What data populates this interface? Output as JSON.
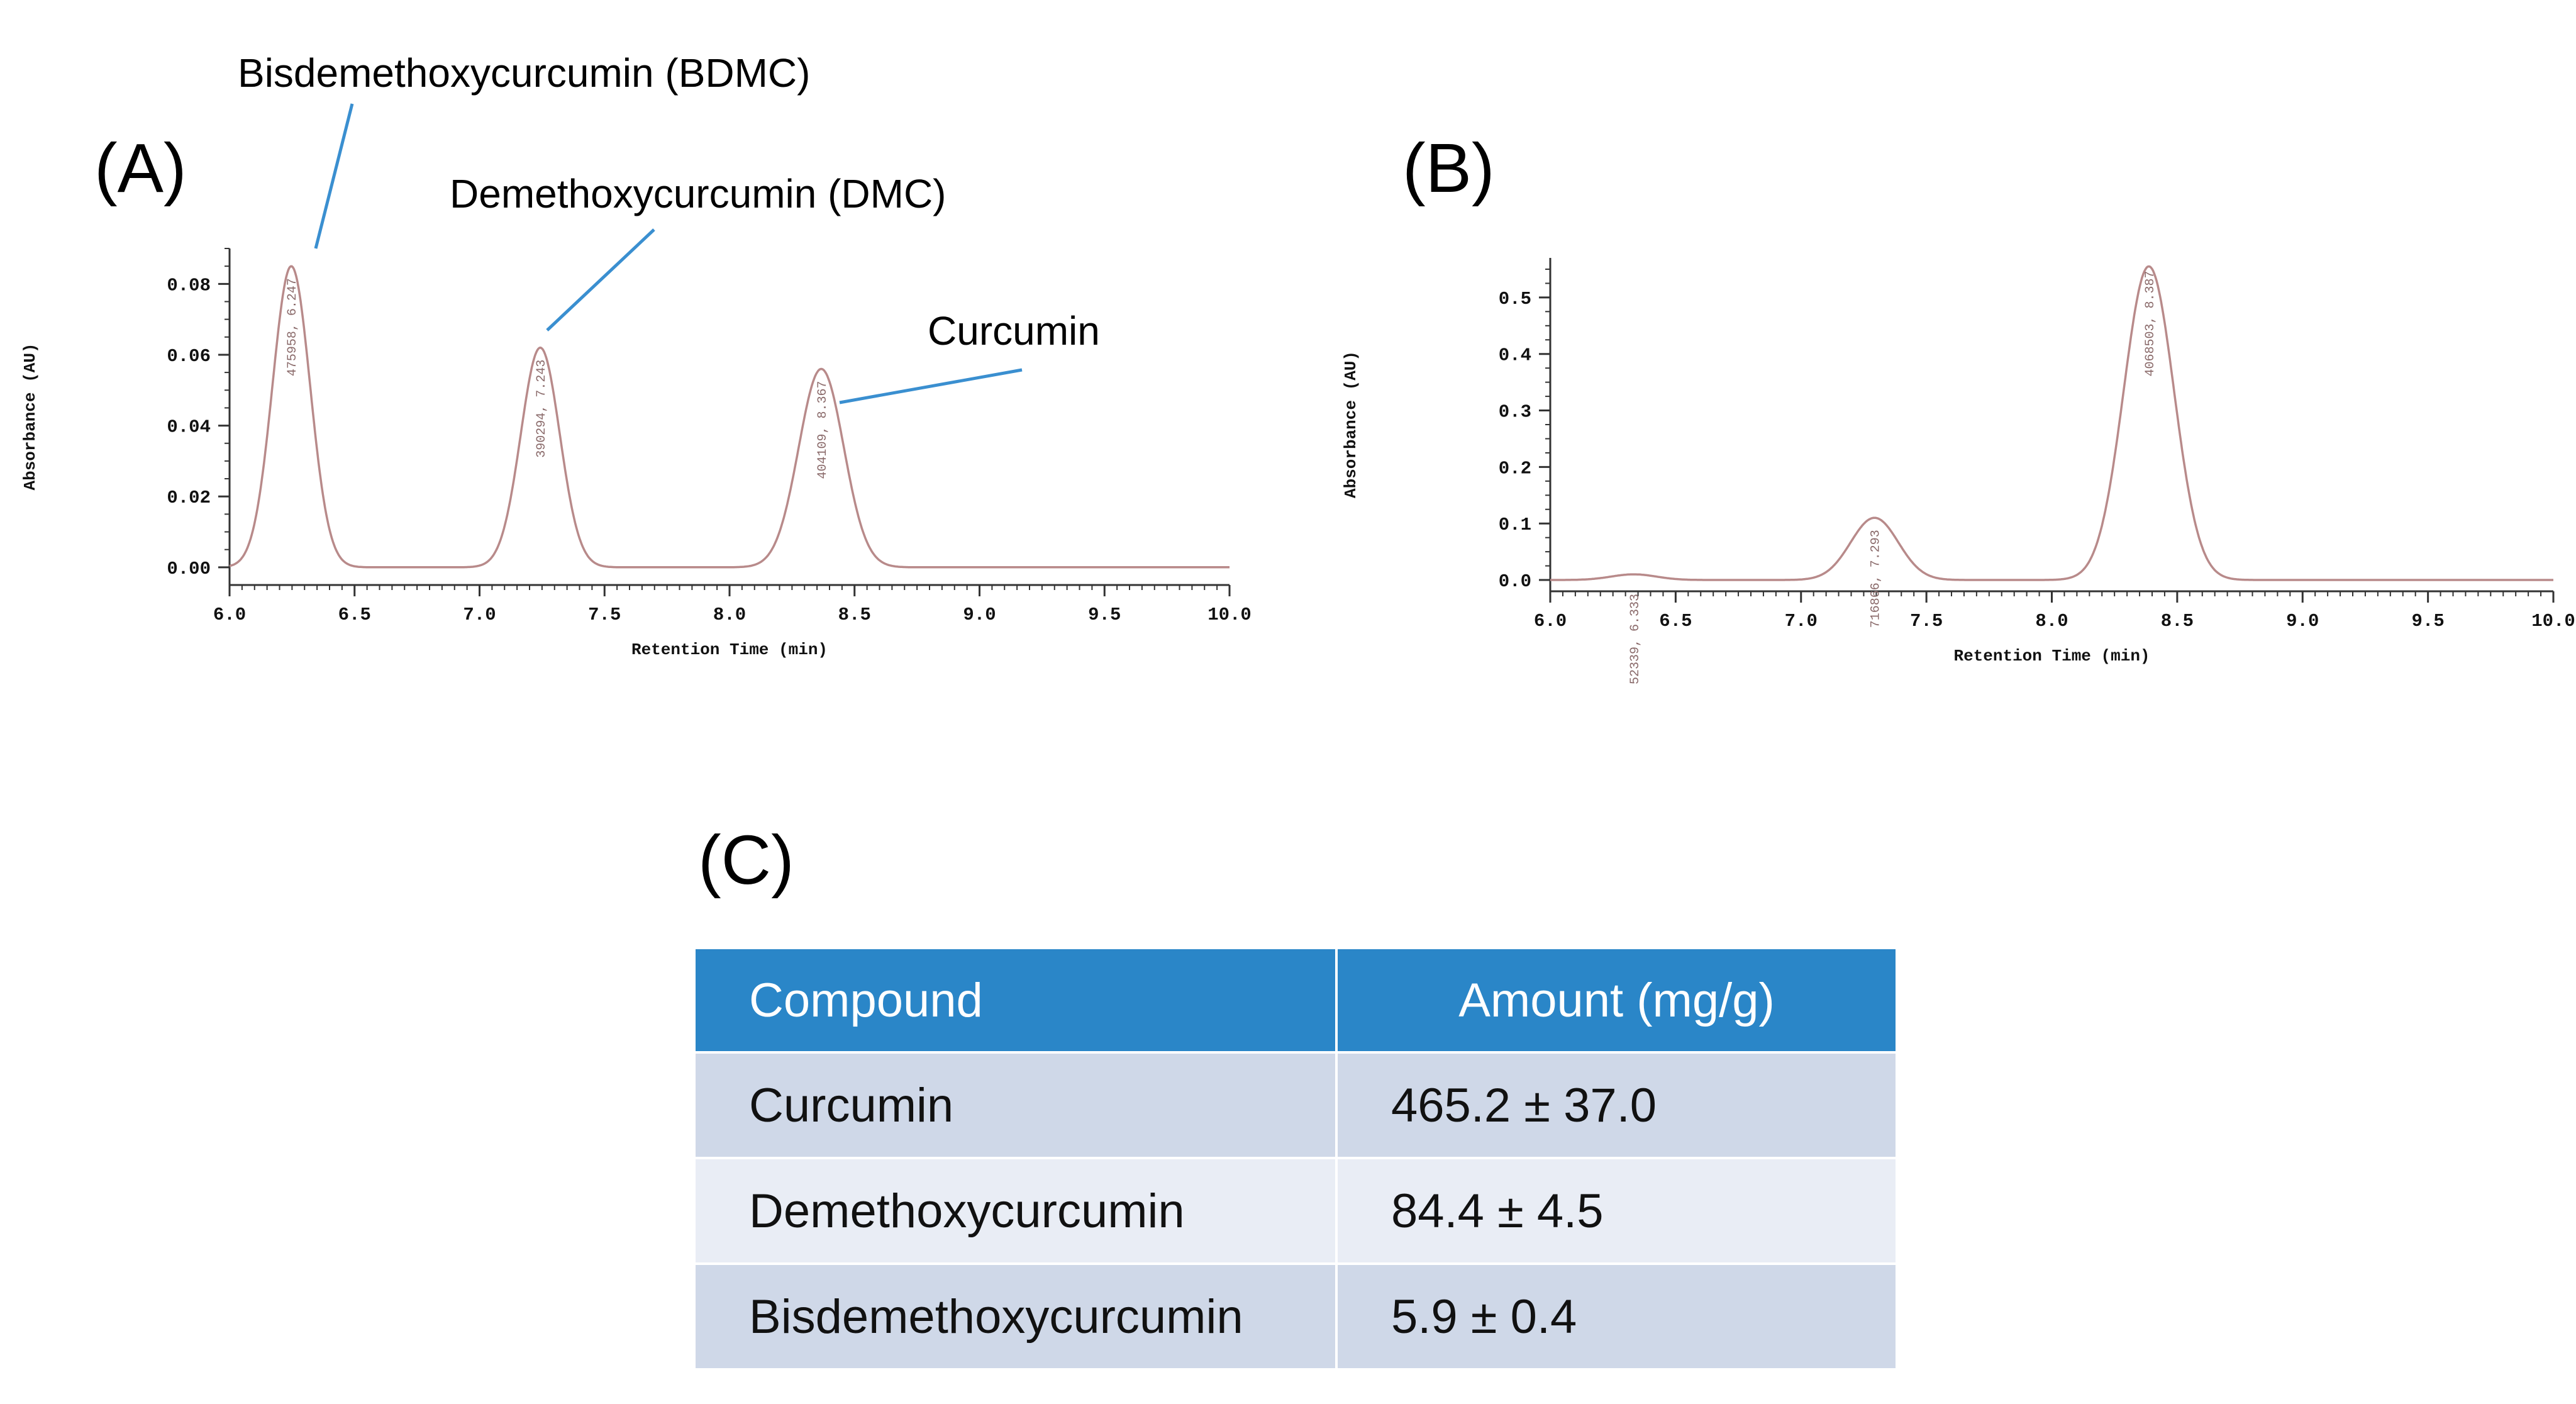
{
  "panels": {
    "a_label": "(A)",
    "b_label": "(B)",
    "c_label": "(C)"
  },
  "annotations": {
    "bdmc": "Bisdemethoxycurcumin (BDMC)",
    "dmc": "Demethoxycurcumin (DMC)",
    "curcumin": "Curcumin"
  },
  "colors": {
    "curve": "#b88a8a",
    "leader": "#3a8fd0",
    "table_header": "#2a86c8",
    "row_odd": "#cfd8e8",
    "row_even": "#e9edf5"
  },
  "chart_data": [
    {
      "id": "A",
      "type": "line",
      "title": "(A)",
      "xlabel": "Retention Time (min)",
      "ylabel": "Absorbance (AU)",
      "xlim": [
        6.0,
        10.0
      ],
      "ylim": [
        -0.005,
        0.09
      ],
      "xticks": [
        6.0,
        6.5,
        7.0,
        7.5,
        8.0,
        8.5,
        9.0,
        9.5,
        10.0
      ],
      "xtick_labels": [
        "6.0",
        "6.5",
        "7.0",
        "7.5",
        "8.0",
        "8.5",
        "9.0",
        "9.5",
        "10.0"
      ],
      "yticks": [
        0.0,
        0.02,
        0.04,
        0.06,
        0.08
      ],
      "ytick_labels": [
        "0.00",
        "0.02",
        "0.04",
        "0.06",
        "0.08"
      ],
      "grid": false,
      "peaks": [
        {
          "rt": 6.247,
          "height": 0.085,
          "sigma": 0.075,
          "label": "475958, 6.247"
        },
        {
          "rt": 7.243,
          "height": 0.062,
          "sigma": 0.078,
          "label": "390294, 7.243"
        },
        {
          "rt": 8.367,
          "height": 0.056,
          "sigma": 0.09,
          "label": "404109, 8.367"
        }
      ]
    },
    {
      "id": "B",
      "type": "line",
      "title": "(B)",
      "xlabel": "Retention Time (min)",
      "ylabel": "Absorbance (AU)",
      "xlim": [
        6.0,
        10.0
      ],
      "ylim": [
        -0.02,
        0.57
      ],
      "xticks": [
        6.0,
        6.5,
        7.0,
        7.5,
        8.0,
        8.5,
        9.0,
        9.5,
        10.0
      ],
      "xtick_labels": [
        "6.0",
        "6.5",
        "7.0",
        "7.5",
        "8.0",
        "8.5",
        "9.0",
        "9.5",
        "10.0"
      ],
      "yticks": [
        0.0,
        0.1,
        0.2,
        0.3,
        0.4,
        0.5
      ],
      "ytick_labels": [
        "0.0",
        "0.1",
        "0.2",
        "0.3",
        "0.4",
        "0.5"
      ],
      "grid": false,
      "peaks": [
        {
          "rt": 6.333,
          "height": 0.01,
          "sigma": 0.09,
          "label": "52339, 6.333"
        },
        {
          "rt": 7.293,
          "height": 0.11,
          "sigma": 0.095,
          "label": "716866, 7.293"
        },
        {
          "rt": 8.387,
          "height": 0.555,
          "sigma": 0.1,
          "label": "4068503, 8.387"
        }
      ]
    }
  ],
  "table": {
    "headers": [
      "Compound",
      "Amount (mg/g)"
    ],
    "rows": [
      {
        "compound": "Curcumin",
        "amount": "465.2 ± 37.0"
      },
      {
        "compound": "Demethoxycurcumin",
        "amount": "84.4 ± 4.5"
      },
      {
        "compound": "Bisdemethoxycurcumin",
        "amount": "5.9 ± 0.4"
      }
    ]
  }
}
